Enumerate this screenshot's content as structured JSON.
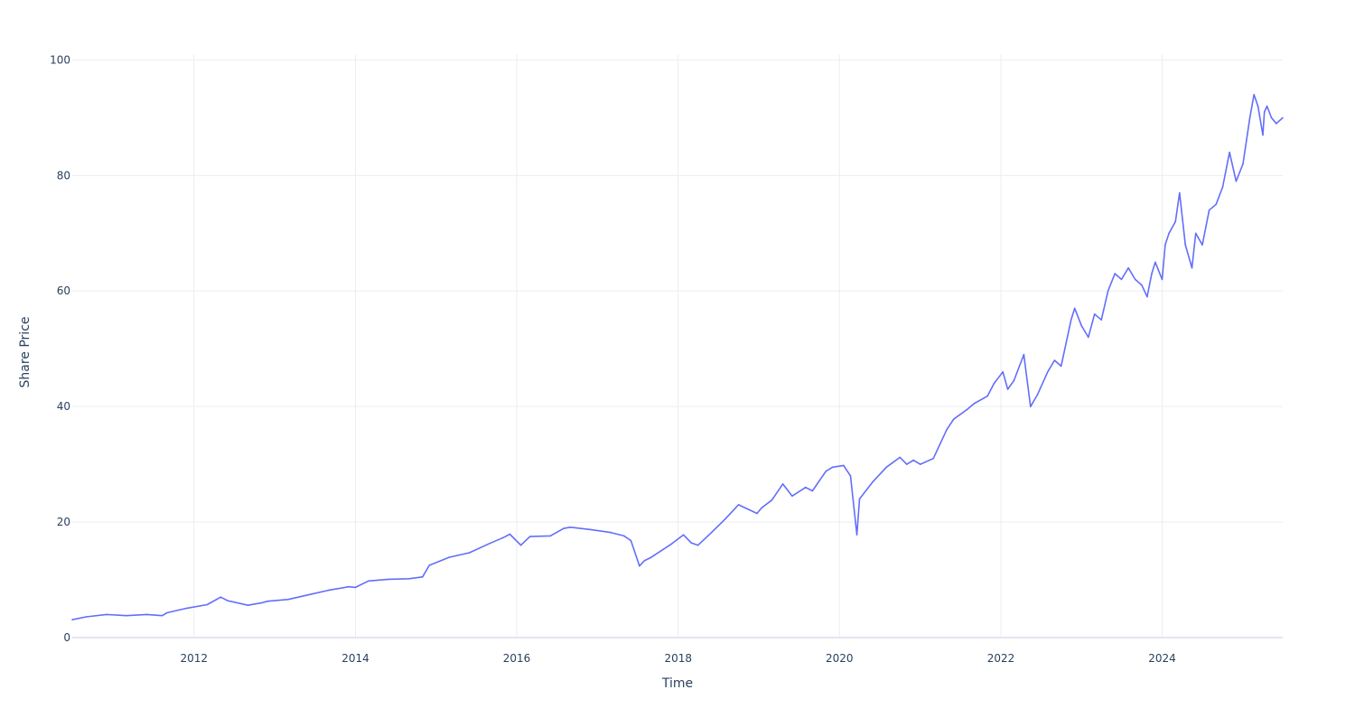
{
  "chart_data": {
    "type": "line",
    "title": "",
    "xlabel": "Time",
    "ylabel": "Share Price",
    "grid": true,
    "x_ticks": [
      "2012",
      "2014",
      "2016",
      "2018",
      "2020",
      "2022",
      "2024"
    ],
    "y_ticks": [
      "0",
      "20",
      "40",
      "60",
      "80",
      "100"
    ],
    "xlim": [
      "2010-06-29",
      "2025-06-30"
    ],
    "ylim": [
      0,
      101
    ],
    "colors": {
      "line": "#636efa",
      "grid": "#ebedf2",
      "text": "#2a3f5f"
    },
    "series": [
      {
        "x": [
          "2010-06-29",
          "2010-09-01",
          "2010-12-01",
          "2011-03-01",
          "2011-06-01",
          "2011-08-10",
          "2011-09-01",
          "2011-12-01",
          "2012-03-01",
          "2012-05-01",
          "2012-06-01",
          "2012-09-01",
          "2012-11-01",
          "2012-12-01",
          "2013-03-01",
          "2013-06-01",
          "2013-09-01",
          "2013-12-01",
          "2014-01-01",
          "2014-03-01",
          "2014-06-01",
          "2014-09-01",
          "2014-11-01",
          "2014-12-01",
          "2015-03-01",
          "2015-06-01",
          "2015-09-01",
          "2015-11-01",
          "2015-12-01",
          "2016-01-20",
          "2016-03-01",
          "2016-06-01",
          "2016-08-01",
          "2016-09-01",
          "2016-12-01",
          "2017-03-01",
          "2017-05-01",
          "2017-06-01",
          "2017-07-10",
          "2017-08-01",
          "2017-09-01",
          "2017-12-01",
          "2018-01-25",
          "2018-03-01",
          "2018-04-01",
          "2018-06-01",
          "2018-08-01",
          "2018-10-01",
          "2018-12-24",
          "2019-01-15",
          "2019-03-01",
          "2019-04-20",
          "2019-06-01",
          "2019-08-01",
          "2019-09-01",
          "2019-11-01",
          "2019-12-01",
          "2020-01-20",
          "2020-02-20",
          "2020-03-20",
          "2020-04-01",
          "2020-06-01",
          "2020-08-01",
          "2020-10-01",
          "2020-11-01",
          "2020-12-01",
          "2021-01-01",
          "2021-03-01",
          "2021-05-01",
          "2021-06-01",
          "2021-08-01",
          "2021-09-01",
          "2021-11-01",
          "2021-12-01",
          "2022-01-10",
          "2022-02-01",
          "2022-03-01",
          "2022-04-15",
          "2022-05-15",
          "2022-06-15",
          "2022-08-01",
          "2022-09-01",
          "2022-10-01",
          "2022-11-15",
          "2022-12-01",
          "2023-01-01",
          "2023-02-01",
          "2023-03-01",
          "2023-04-01",
          "2023-05-01",
          "2023-06-01",
          "2023-07-01",
          "2023-08-01",
          "2023-09-01",
          "2023-10-01",
          "2023-10-25",
          "2023-11-15",
          "2023-12-01",
          "2024-01-01",
          "2024-01-15",
          "2024-02-01",
          "2024-03-01",
          "2024-03-20",
          "2024-04-15",
          "2024-05-15",
          "2024-06-01",
          "2024-07-01",
          "2024-08-01",
          "2024-09-01",
          "2024-10-01",
          "2024-11-01",
          "2024-12-01",
          "2025-01-01",
          "2025-02-01",
          "2025-02-20",
          "2025-03-10",
          "2025-04-01",
          "2025-04-08",
          "2025-04-20",
          "2025-05-10",
          "2025-06-01",
          "2025-06-30"
        ],
        "y": [
          3.1,
          3.6,
          4.0,
          3.8,
          4.0,
          3.8,
          4.3,
          5.1,
          5.7,
          7.0,
          6.4,
          5.6,
          6.0,
          6.3,
          6.6,
          7.4,
          8.2,
          8.8,
          8.7,
          9.8,
          10.1,
          10.2,
          10.5,
          12.5,
          13.9,
          14.7,
          16.3,
          17.3,
          17.9,
          16.0,
          17.5,
          17.6,
          18.9,
          19.1,
          18.7,
          18.2,
          17.6,
          16.8,
          12.4,
          13.3,
          13.9,
          16.2,
          17.8,
          16.4,
          16.0,
          18.2,
          20.5,
          23.0,
          21.5,
          22.5,
          23.8,
          26.6,
          24.5,
          26.0,
          25.4,
          28.8,
          29.5,
          29.8,
          28.0,
          17.8,
          24.0,
          27.0,
          29.5,
          31.2,
          30.0,
          30.7,
          30.0,
          31.0,
          36.0,
          37.8,
          39.5,
          40.5,
          41.8,
          44.0,
          46.0,
          43.0,
          44.5,
          49.0,
          40.0,
          42.0,
          46.0,
          48.0,
          47.0,
          55.0,
          57.0,
          54.0,
          52.0,
          56.0,
          55.0,
          60.0,
          63.0,
          62.0,
          64.0,
          62.0,
          61.0,
          59.0,
          63.0,
          65.0,
          62.0,
          68.0,
          70.0,
          72.0,
          77.0,
          68.0,
          64.0,
          70.0,
          68.0,
          74.0,
          75.0,
          78.0,
          84.0,
          79.0,
          82.0,
          90.0,
          94.0,
          92.0,
          87.0,
          91.0,
          92.0,
          90.0,
          89.0,
          90.0
        ]
      }
    ]
  }
}
